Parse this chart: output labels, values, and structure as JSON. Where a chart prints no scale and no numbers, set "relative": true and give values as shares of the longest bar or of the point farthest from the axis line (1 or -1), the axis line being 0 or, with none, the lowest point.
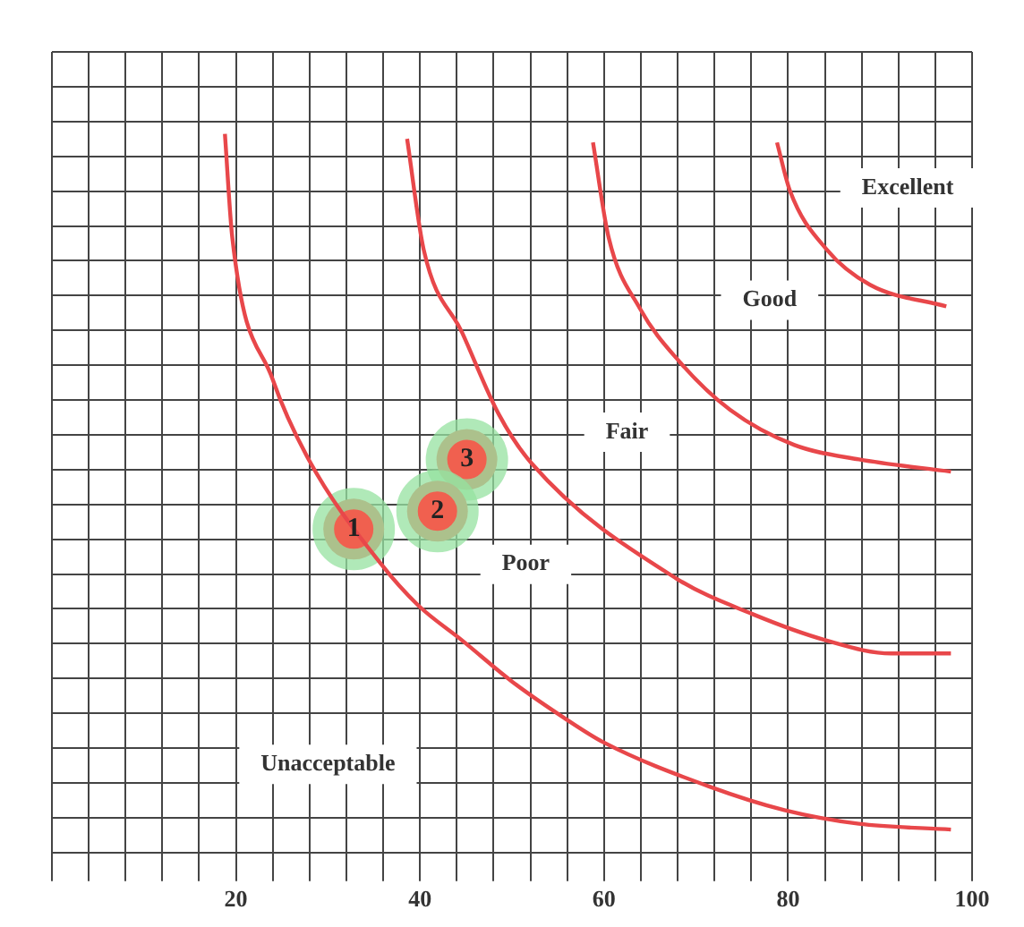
{
  "chart_data": {
    "type": "line",
    "relative": true,
    "grid": true,
    "xlim": [
      0,
      100
    ],
    "xticks": [
      {
        "value": 0,
        "label": null
      },
      {
        "value": 4,
        "label": null
      },
      {
        "value": 8,
        "label": null
      },
      {
        "value": 12,
        "label": null
      },
      {
        "value": 16,
        "label": null
      },
      20,
      {
        "value": 24,
        "label": null
      },
      {
        "value": 28,
        "label": null
      },
      {
        "value": 32,
        "label": null
      },
      {
        "value": 36,
        "label": null
      },
      40,
      {
        "value": 44,
        "label": null
      },
      {
        "value": 48,
        "label": null
      },
      {
        "value": 52,
        "label": null
      },
      {
        "value": 56,
        "label": null
      },
      60,
      {
        "value": 64,
        "label": null
      },
      {
        "value": 68,
        "label": null
      },
      {
        "value": 72,
        "label": null
      },
      {
        "value": 76,
        "label": null
      },
      80,
      {
        "value": 84,
        "label": null
      },
      {
        "value": 88,
        "label": null
      },
      {
        "value": 92,
        "label": null
      },
      {
        "value": 96,
        "label": null
      },
      100
    ],
    "series": [
      {
        "color": "#e8474a",
        "x": [
          18.8,
          19.6,
          24.0,
          27.9,
          35.8,
          39.8,
          44.6,
          50.0,
          55.6,
          60.0,
          71.4,
          79.6,
          87.7,
          97.7
        ],
        "values": [
          1.0,
          0.856,
          0.658,
          0.547,
          0.401,
          0.344,
          0.295,
          0.238,
          0.188,
          0.153,
          0.092,
          0.059,
          0.04,
          0.032
        ]
      },
      {
        "color": "#e8474a",
        "x": [
          38.6,
          40.4,
          44.6,
          48.6,
          52.1,
          67.9,
          76.1,
          84.2,
          91.2,
          97.7
        ],
        "values": [
          0.993,
          0.839,
          0.723,
          0.609,
          0.542,
          0.381,
          0.332,
          0.295,
          0.277,
          0.277
        ]
      },
      {
        "color": "#e8474a",
        "x": [
          58.8,
          60.5,
          63.9,
          68.2,
          73.7,
          80.7,
          87.7,
          97.7
        ],
        "values": [
          0.988,
          0.856,
          0.757,
          0.683,
          0.616,
          0.567,
          0.547,
          0.53
        ]
      },
      {
        "color": "#e8474a",
        "x": [
          78.8,
          80.2,
          84.2,
          88.9,
          97.2
        ],
        "values": [
          0.988,
          0.921,
          0.839,
          0.79,
          0.76
        ]
      },
      {
        "type": "scatter",
        "name": "1",
        "color": "#f0604f",
        "x": [
          32.8
        ],
        "values": [
          0.45
        ]
      },
      {
        "type": "scatter",
        "name": "2",
        "color": "#f0604f",
        "x": [
          41.9
        ],
        "values": [
          0.475
        ]
      },
      {
        "type": "scatter",
        "name": "3",
        "color": "#f0604f",
        "x": [
          45.1
        ],
        "values": [
          0.547
        ]
      }
    ],
    "annotations": [
      "Excellent",
      "Good",
      "Fair",
      "Poor",
      "Unacceptable"
    ]
  }
}
